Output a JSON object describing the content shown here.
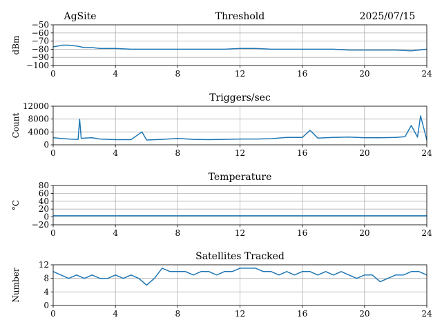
{
  "header": {
    "site": "AgSite",
    "date": "2025/07/15"
  },
  "style": {
    "line_color": "#1f77b4",
    "grid_color": "#b0b0b0",
    "axis_color": "#000000"
  },
  "chart_data": [
    {
      "type": "line",
      "title": "Threshold",
      "xlabel": "",
      "ylabel": "dBm",
      "xlim": [
        0,
        24
      ],
      "ylim": [
        -100,
        -50
      ],
      "xticks": [
        0,
        4,
        8,
        12,
        16,
        20,
        24
      ],
      "yticks": [
        -100,
        -90,
        -80,
        -70,
        -60,
        -50
      ],
      "ytick_labels": [
        "−100",
        "−90",
        "−80",
        "−70",
        "−60",
        "−50"
      ],
      "grid": true,
      "x": [
        0,
        0.3,
        0.6,
        1.0,
        1.5,
        2.0,
        2.5,
        3.0,
        4.0,
        5.0,
        6.0,
        7.0,
        8.0,
        9.0,
        10.0,
        11.0,
        12.0,
        13.0,
        14.0,
        15.0,
        16.0,
        17.0,
        18.0,
        19.0,
        20.0,
        21.0,
        22.0,
        23.0,
        23.5,
        24.0
      ],
      "y": [
        -77,
        -76,
        -75,
        -75,
        -76,
        -78,
        -78,
        -79,
        -79,
        -80,
        -80,
        -80,
        -80,
        -80,
        -80,
        -80,
        -79,
        -79,
        -80,
        -80,
        -80,
        -80,
        -80,
        -81,
        -81,
        -81,
        -81,
        -82,
        -81,
        -80
      ]
    },
    {
      "type": "line",
      "title": "Triggers/sec",
      "xlabel": "",
      "ylabel": "Count",
      "xlim": [
        0,
        24
      ],
      "ylim": [
        0,
        12000
      ],
      "xticks": [
        0,
        4,
        8,
        12,
        16,
        20,
        24
      ],
      "yticks": [
        0,
        4000,
        8000,
        12000
      ],
      "ytick_labels": [
        "0",
        "4000",
        "8000",
        "12000"
      ],
      "grid": true,
      "x": [
        0,
        0.5,
        1.0,
        1.6,
        1.7,
        1.8,
        2.0,
        2.5,
        3.0,
        4.0,
        5.0,
        5.7,
        6.0,
        7.0,
        8.0,
        9.0,
        10.0,
        11.0,
        12.0,
        13.0,
        14.0,
        15.0,
        16.0,
        16.5,
        17.0,
        18.0,
        19.0,
        20.0,
        21.0,
        22.0,
        22.6,
        23.0,
        23.4,
        23.6,
        24.0
      ],
      "y": [
        2200,
        2000,
        1800,
        1700,
        8000,
        2000,
        2100,
        2200,
        1800,
        1600,
        1600,
        4000,
        1500,
        1700,
        2000,
        1700,
        1600,
        1700,
        1800,
        1800,
        1900,
        2300,
        2300,
        4500,
        2100,
        2300,
        2400,
        2200,
        2200,
        2300,
        2500,
        6000,
        2400,
        9000,
        1500
      ]
    },
    {
      "type": "line",
      "title": "Temperature",
      "xlabel": "",
      "ylabel": "°C",
      "xlim": [
        0,
        24
      ],
      "ylim": [
        -20,
        80
      ],
      "xticks": [
        0,
        4,
        8,
        12,
        16,
        20,
        24
      ],
      "yticks": [
        -20,
        0,
        20,
        40,
        60,
        80
      ],
      "ytick_labels": [
        "−20",
        "0",
        "20",
        "40",
        "60",
        "80"
      ],
      "grid": true,
      "x": [
        0,
        24
      ],
      "y": [
        3,
        3
      ]
    },
    {
      "type": "line",
      "title": "Satellites Tracked",
      "xlabel": "",
      "ylabel": "Number",
      "xlim": [
        0,
        24
      ],
      "ylim": [
        0,
        12
      ],
      "xticks": [
        0,
        4,
        8,
        12,
        16,
        20,
        24
      ],
      "yticks": [
        0,
        4,
        8,
        12
      ],
      "ytick_labels": [
        "0",
        "4",
        "8",
        "12"
      ],
      "grid": true,
      "x": [
        0,
        0.5,
        1.0,
        1.5,
        2.0,
        2.5,
        3.0,
        3.5,
        4.0,
        4.5,
        5.0,
        5.5,
        6.0,
        6.5,
        7.0,
        7.5,
        8.0,
        8.5,
        9.0,
        9.5,
        10.0,
        10.5,
        11.0,
        11.5,
        12.0,
        12.5,
        13.0,
        13.5,
        14.0,
        14.5,
        15.0,
        15.5,
        16.0,
        16.5,
        17.0,
        17.5,
        18.0,
        18.5,
        19.0,
        19.5,
        20.0,
        20.5,
        21.0,
        21.5,
        22.0,
        22.5,
        23.0,
        23.5,
        24.0
      ],
      "y": [
        10,
        9,
        8,
        9,
        8,
        9,
        8,
        8,
        9,
        8,
        9,
        8,
        6,
        8,
        11,
        10,
        10,
        10,
        9,
        10,
        10,
        9,
        10,
        10,
        11,
        11,
        11,
        10,
        10,
        9,
        10,
        9,
        10,
        10,
        9,
        10,
        9,
        10,
        9,
        8,
        9,
        9,
        7,
        8,
        9,
        9,
        10,
        10,
        9
      ]
    }
  ]
}
